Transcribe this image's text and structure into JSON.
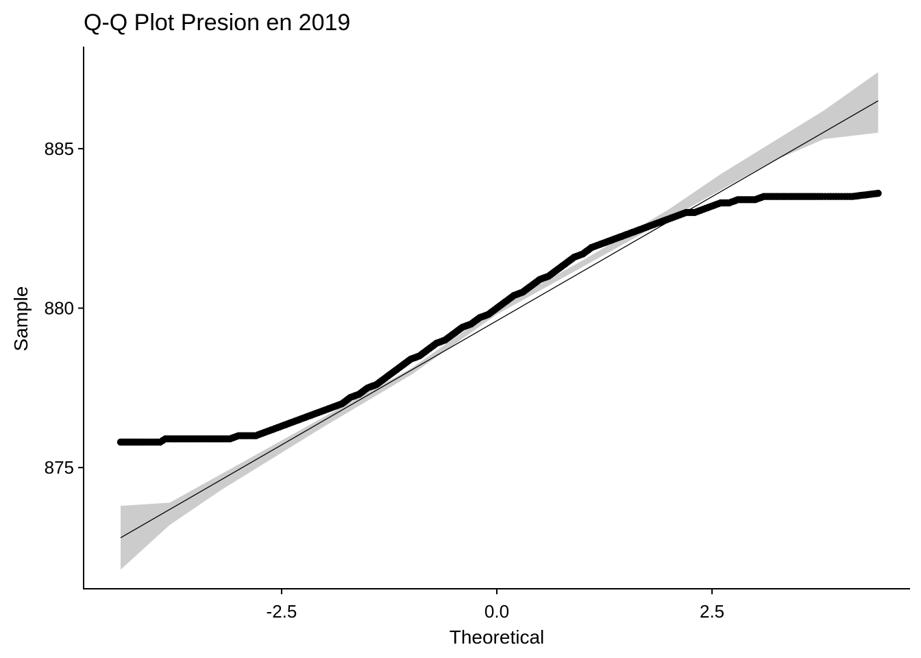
{
  "chart_data": {
    "type": "scatter",
    "title": "Q-Q Plot Presion en 2019",
    "xlabel": "Theoretical",
    "ylabel": "Sample",
    "xlim": [
      -4.8,
      4.8
    ],
    "ylim": [
      871.2,
      888.2
    ],
    "x_ticks": [
      -2.5,
      0.0,
      2.5
    ],
    "x_tick_labels": [
      "-2.5",
      "0.0",
      "2.5"
    ],
    "y_ticks": [
      875,
      880,
      885
    ],
    "y_tick_labels": [
      "875",
      "880",
      "885"
    ],
    "grid": false,
    "point_color": "#000000",
    "band_color": "#cccccc",
    "reference_line": {
      "x": [
        -4.37,
        4.43
      ],
      "y": [
        872.8,
        886.5
      ]
    },
    "confidence_band": {
      "x": [
        -4.37,
        -3.8,
        -3.2,
        -2.6,
        -2.0,
        -1.0,
        0.0,
        1.0,
        2.0,
        2.6,
        3.2,
        3.8,
        4.43
      ],
      "lower": [
        871.8,
        873.2,
        874.3,
        875.3,
        876.3,
        877.9,
        879.8,
        881.3,
        882.8,
        883.7,
        884.6,
        885.3,
        885.5
      ],
      "upper": [
        873.8,
        873.9,
        874.8,
        875.7,
        876.6,
        878.1,
        880.0,
        881.5,
        883.1,
        884.2,
        885.2,
        886.2,
        887.4
      ]
    },
    "series": [
      {
        "x": [
          -4.37,
          -4.13,
          -4.04,
          -3.97,
          -3.91,
          -3.85,
          -3.8,
          -3.7,
          -3.6,
          -3.5,
          -3.4,
          -3.3,
          -3.2,
          -3.1,
          -3.0,
          -2.9,
          -2.8,
          -2.7,
          -2.6,
          -2.5,
          -2.4,
          -2.3,
          -2.2,
          -2.1,
          -2.0,
          -1.9,
          -1.8,
          -1.7,
          -1.6,
          -1.5,
          -1.4,
          -1.3,
          -1.2,
          -1.1,
          -1.0,
          -0.9,
          -0.8,
          -0.7,
          -0.6,
          -0.5,
          -0.4,
          -0.3,
          -0.2,
          -0.1,
          0.0,
          0.1,
          0.2,
          0.3,
          0.4,
          0.5,
          0.6,
          0.7,
          0.8,
          0.9,
          1.0,
          1.1,
          1.2,
          1.3,
          1.4,
          1.5,
          1.6,
          1.7,
          1.8,
          1.9,
          2.0,
          2.1,
          2.2,
          2.3,
          2.4,
          2.5,
          2.6,
          2.7,
          2.8,
          2.9,
          3.0,
          3.1,
          3.2,
          3.3,
          3.4,
          3.5,
          3.6,
          3.7,
          3.78,
          3.85,
          3.91,
          3.97,
          4.04,
          4.13,
          4.43
        ],
        "y": [
          875.8,
          875.8,
          875.8,
          875.8,
          875.8,
          875.9,
          875.9,
          875.9,
          875.9,
          875.9,
          875.9,
          875.9,
          875.9,
          875.9,
          876.0,
          876.0,
          876.0,
          876.1,
          876.2,
          876.3,
          876.4,
          876.5,
          876.6,
          876.7,
          876.8,
          876.9,
          877.0,
          877.2,
          877.3,
          877.5,
          877.6,
          877.8,
          878.0,
          878.2,
          878.4,
          878.5,
          878.7,
          878.9,
          879.0,
          879.2,
          879.4,
          879.5,
          879.7,
          879.8,
          880.0,
          880.2,
          880.4,
          880.5,
          880.7,
          880.9,
          881.0,
          881.2,
          881.4,
          881.6,
          881.7,
          881.9,
          882.0,
          882.1,
          882.2,
          882.3,
          882.4,
          882.5,
          882.6,
          882.7,
          882.8,
          882.9,
          883.0,
          883.0,
          883.1,
          883.2,
          883.3,
          883.3,
          883.4,
          883.4,
          883.4,
          883.5,
          883.5,
          883.5,
          883.5,
          883.5,
          883.5,
          883.5,
          883.5,
          883.5,
          883.5,
          883.5,
          883.5,
          883.5,
          883.6
        ]
      }
    ]
  }
}
